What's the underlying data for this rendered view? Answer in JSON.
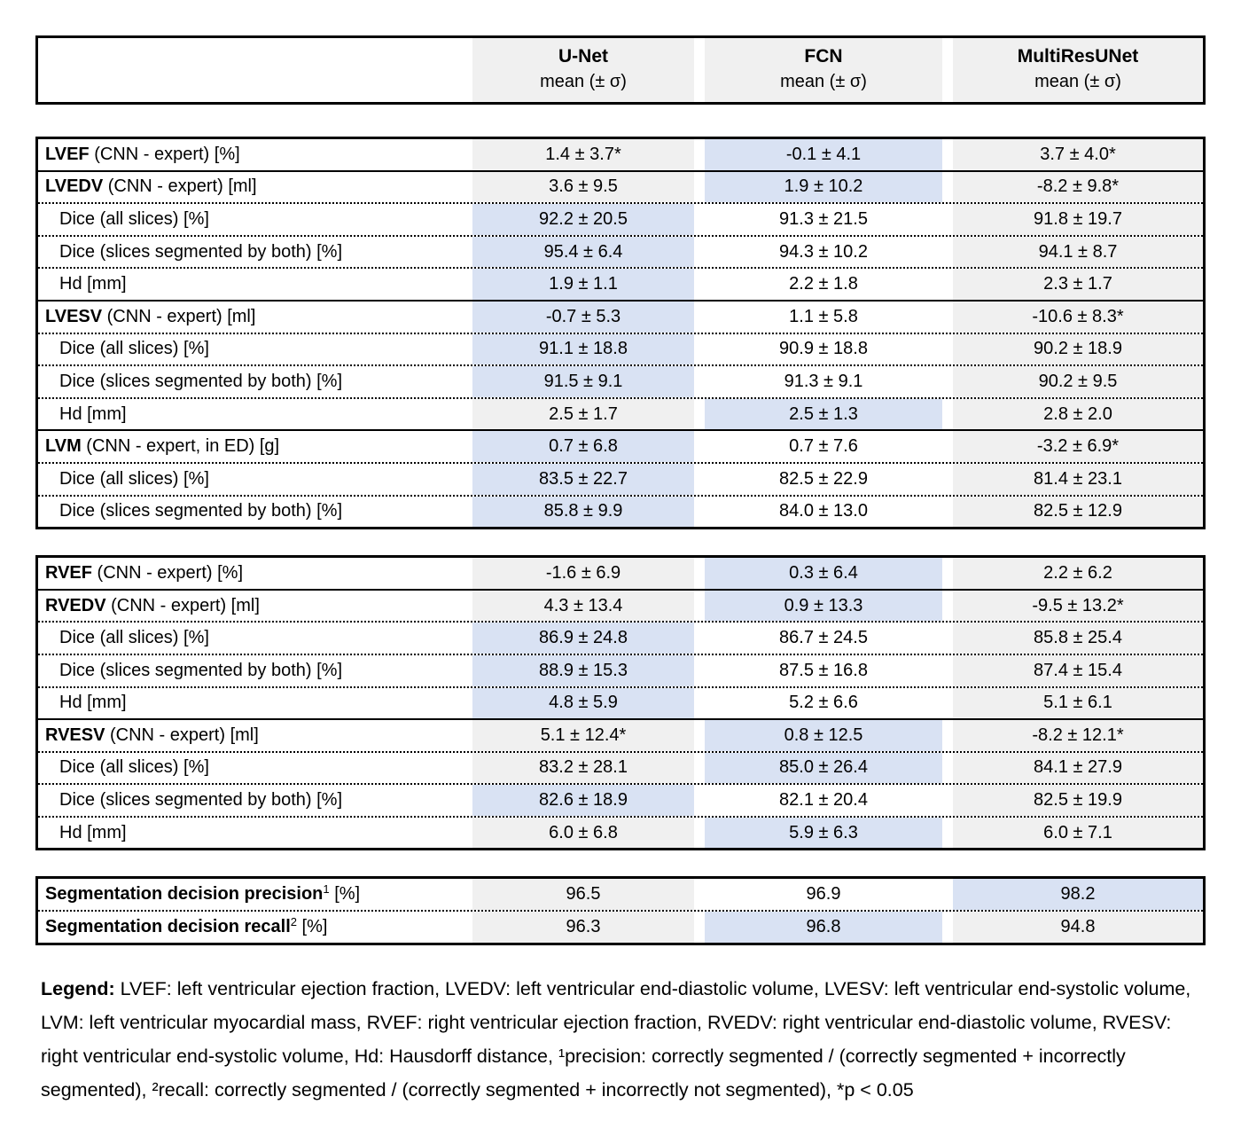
{
  "header": {
    "columns": [
      {
        "name": "U-Net",
        "sub": "mean (± σ)"
      },
      {
        "name": "FCN",
        "sub": "mean (± σ)"
      },
      {
        "name": "MultiResUNet",
        "sub": "mean (± σ)"
      }
    ]
  },
  "colors": {
    "column_base_gray": "#f0f0f0",
    "fcn_column_base": "#ffffff",
    "highlight_blue": "#d9e2f3",
    "border_black": "#000000"
  },
  "measure_tables": [
    {
      "name": "lv-metrics",
      "rows": [
        {
          "bold": "LVEF",
          "sup": "",
          "rest": " (CNN - expert) [%]",
          "indent": false,
          "values": [
            "1.4 ± 3.7*",
            "-0.1 ± 4.1",
            "3.7 ± 4.0*"
          ],
          "highlight": 1,
          "sep": "solid"
        },
        {
          "bold": "LVEDV",
          "sup": "",
          "rest": " (CNN - expert) [ml]",
          "indent": false,
          "values": [
            "3.6 ± 9.5",
            "1.9 ± 10.2",
            "-8.2 ± 9.8*"
          ],
          "highlight": 1,
          "sep": "dotted"
        },
        {
          "bold": "",
          "sup": "",
          "rest": "Dice (all slices) [%]",
          "indent": true,
          "values": [
            "92.2 ± 20.5",
            "91.3 ± 21.5",
            "91.8 ± 19.7"
          ],
          "highlight": 0,
          "sep": "dotted"
        },
        {
          "bold": "",
          "sup": "",
          "rest": "Dice (slices segmented by both) [%]",
          "indent": true,
          "values": [
            "95.4 ± 6.4",
            "94.3 ± 10.2",
            "94.1 ± 8.7"
          ],
          "highlight": 0,
          "sep": "dotted"
        },
        {
          "bold": "",
          "sup": "",
          "rest": "Hd [mm]",
          "indent": true,
          "values": [
            "1.9 ± 1.1",
            "2.2 ± 1.8",
            "2.3 ± 1.7"
          ],
          "highlight": 0,
          "sep": "solid"
        },
        {
          "bold": "LVESV",
          "sup": "",
          "rest": " (CNN - expert) [ml]",
          "indent": false,
          "values": [
            "-0.7 ± 5.3",
            "1.1 ± 5.8",
            "-10.6 ± 8.3*"
          ],
          "highlight": 0,
          "sep": "dotted"
        },
        {
          "bold": "",
          "sup": "",
          "rest": "Dice (all slices) [%]",
          "indent": true,
          "values": [
            "91.1 ± 18.8",
            "90.9 ± 18.8",
            "90.2 ± 18.9"
          ],
          "highlight": 0,
          "sep": "dotted"
        },
        {
          "bold": "",
          "sup": "",
          "rest": "Dice (slices segmented by both) [%]",
          "indent": true,
          "values": [
            "91.5 ± 9.1",
            "91.3 ± 9.1",
            "90.2 ± 9.5"
          ],
          "highlight": 0,
          "sep": "dotted"
        },
        {
          "bold": "",
          "sup": "",
          "rest": "Hd [mm]",
          "indent": true,
          "values": [
            "2.5 ± 1.7",
            "2.5 ± 1.3",
            "2.8 ± 2.0"
          ],
          "highlight": 1,
          "sep": "solid"
        },
        {
          "bold": "LVM",
          "sup": "",
          "rest": " (CNN - expert, in ED) [g]",
          "indent": false,
          "values": [
            "0.7 ± 6.8",
            "0.7 ± 7.6",
            "-3.2 ± 6.9*"
          ],
          "highlight": 0,
          "sep": "dotted"
        },
        {
          "bold": "",
          "sup": "",
          "rest": "Dice (all slices) [%]",
          "indent": true,
          "values": [
            "83.5 ± 22.7",
            "82.5 ± 22.9",
            "81.4 ± 23.1"
          ],
          "highlight": 0,
          "sep": "dotted"
        },
        {
          "bold": "",
          "sup": "",
          "rest": "Dice (slices segmented by both) [%]",
          "indent": true,
          "values": [
            "85.8 ± 9.9",
            "84.0 ± 13.0",
            "82.5 ± 12.9"
          ],
          "highlight": 0,
          "sep": "none"
        }
      ]
    },
    {
      "name": "rv-metrics",
      "rows": [
        {
          "bold": "RVEF",
          "sup": "",
          "rest": " (CNN - expert) [%]",
          "indent": false,
          "values": [
            "-1.6 ± 6.9",
            "0.3 ± 6.4",
            "2.2 ± 6.2"
          ],
          "highlight": 1,
          "sep": "solid"
        },
        {
          "bold": "RVEDV",
          "sup": "",
          "rest": " (CNN - expert) [ml]",
          "indent": false,
          "values": [
            "4.3 ± 13.4",
            "0.9 ± 13.3",
            "-9.5 ± 13.2*"
          ],
          "highlight": 1,
          "sep": "dotted"
        },
        {
          "bold": "",
          "sup": "",
          "rest": "Dice (all slices) [%]",
          "indent": true,
          "values": [
            "86.9 ± 24.8",
            "86.7 ± 24.5",
            "85.8 ± 25.4"
          ],
          "highlight": 0,
          "sep": "dotted"
        },
        {
          "bold": "",
          "sup": "",
          "rest": "Dice (slices segmented by both) [%]",
          "indent": true,
          "values": [
            "88.9 ± 15.3",
            "87.5 ± 16.8",
            "87.4 ± 15.4"
          ],
          "highlight": 0,
          "sep": "dotted"
        },
        {
          "bold": "",
          "sup": "",
          "rest": "Hd [mm]",
          "indent": true,
          "values": [
            "4.8 ± 5.9",
            "5.2 ± 6.6",
            "5.1 ± 6.1"
          ],
          "highlight": 0,
          "sep": "solid"
        },
        {
          "bold": "RVESV",
          "sup": "",
          "rest": " (CNN - expert) [ml]",
          "indent": false,
          "values": [
            "5.1 ± 12.4*",
            "0.8 ± 12.5",
            "-8.2 ± 12.1*"
          ],
          "highlight": 1,
          "sep": "dotted"
        },
        {
          "bold": "",
          "sup": "",
          "rest": "Dice (all slices) [%]",
          "indent": true,
          "values": [
            "83.2 ± 28.1",
            "85.0 ± 26.4",
            "84.1 ± 27.9"
          ],
          "highlight": 1,
          "sep": "dotted"
        },
        {
          "bold": "",
          "sup": "",
          "rest": "Dice (slices segmented by both) [%]",
          "indent": true,
          "values": [
            "82.6 ± 18.9",
            "82.1 ± 20.4",
            "82.5 ± 19.9"
          ],
          "highlight": 0,
          "sep": "dotted"
        },
        {
          "bold": "",
          "sup": "",
          "rest": "Hd [mm]",
          "indent": true,
          "values": [
            "6.0 ± 6.8",
            "5.9 ± 6.3",
            "6.0 ± 7.1"
          ],
          "highlight": 1,
          "sep": "none"
        }
      ]
    },
    {
      "name": "segmentation-decision",
      "rows": [
        {
          "bold": "Segmentation decision precision",
          "sup": "1",
          "rest": " [%]",
          "indent": false,
          "values": [
            "96.5",
            "96.9",
            "98.2"
          ],
          "highlight": 2,
          "sep": "dotted"
        },
        {
          "bold": "Segmentation decision recall",
          "sup": "2",
          "rest": " [%]",
          "indent": false,
          "values": [
            "96.3",
            "96.8",
            "94.8"
          ],
          "highlight": 1,
          "sep": "none"
        }
      ]
    }
  ],
  "legend": {
    "label": "Legend:",
    "text": " LVEF: left ventricular ejection fraction, LVEDV: left ventricular end-diastolic volume, LVESV: left ventricular end-systolic volume, LVM: left ventricular myocardial mass, RVEF: right ventricular ejection fraction, RVEDV: right ventricular end-diastolic volume, RVESV: right ventricular end-systolic volume, Hd: Hausdorff distance, ¹precision: correctly segmented / (correctly segmented + incorrectly segmented), ²recall: correctly segmented / (correctly segmented + incorrectly not segmented), *p < 0.05"
  }
}
